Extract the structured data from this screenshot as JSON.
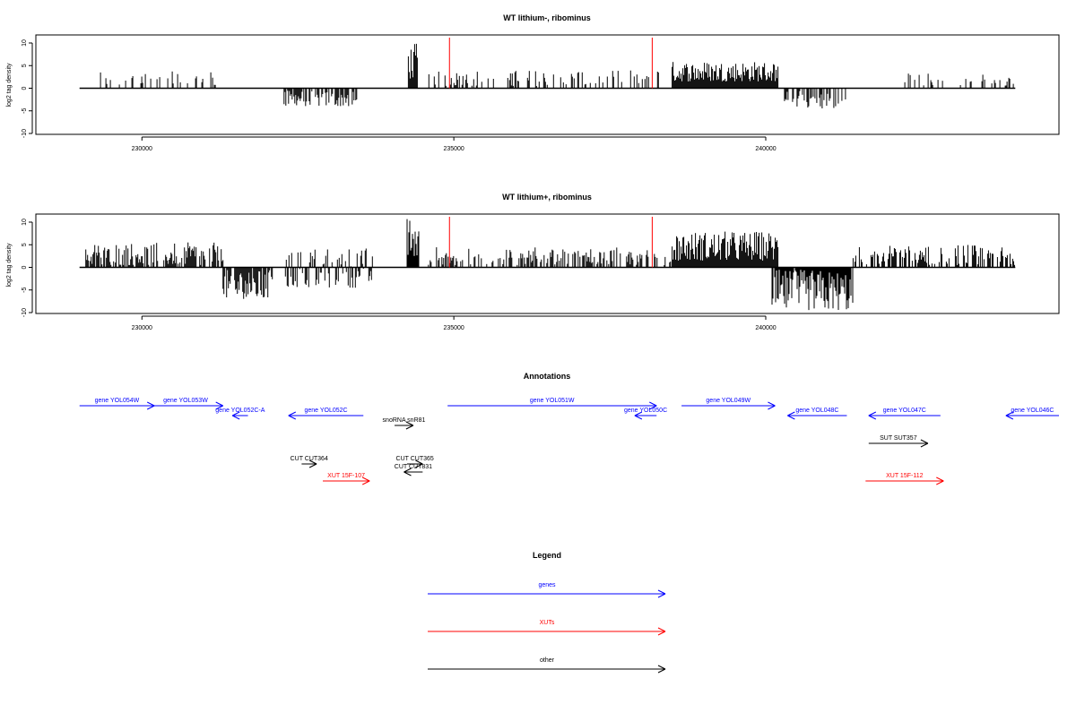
{
  "chart_data": [
    {
      "type": "bar",
      "title": "WT lithium-, ribominus",
      "ylabel": "log2 tag density",
      "xlim": [
        228300,
        244700
      ],
      "ylim": [
        -10,
        10
      ],
      "xticks": [
        230000,
        235000,
        240000
      ],
      "xtick_labels": [
        "230000",
        "235000",
        "240000"
      ],
      "yticks": [
        -10,
        -5,
        0,
        5,
        10
      ],
      "ytick_labels": [
        "-10",
        "-5",
        "0",
        "5",
        "10"
      ],
      "baseline": [
        229000,
        244000
      ],
      "markers": [
        234930,
        238180
      ],
      "marker_color": "#ff0000",
      "regions": [
        {
          "from": 229250,
          "to": 231200,
          "min": 0.5,
          "max": 4,
          "density": 0.25
        },
        {
          "from": 232250,
          "to": 233450,
          "min": -4,
          "max": -0.5,
          "density": 0.7
        },
        {
          "from": 234270,
          "to": 234420,
          "min": 2,
          "max": 10,
          "density": 1.0
        },
        {
          "from": 234600,
          "to": 238300,
          "min": 0.5,
          "max": 4,
          "density": 0.3
        },
        {
          "from": 238500,
          "to": 240200,
          "min": 1.5,
          "max": 6,
          "density": 1.0
        },
        {
          "from": 240200,
          "to": 241300,
          "min": -4.5,
          "max": -0.5,
          "density": 0.55
        },
        {
          "from": 242200,
          "to": 244000,
          "min": 0.5,
          "max": 3.5,
          "density": 0.2
        }
      ]
    },
    {
      "type": "bar",
      "title": "WT lithium+, ribominus",
      "ylabel": "log2 tag density",
      "xlim": [
        228300,
        244700
      ],
      "ylim": [
        -10,
        10
      ],
      "xticks": [
        230000,
        235000,
        240000
      ],
      "xtick_labels": [
        "230000",
        "235000",
        "240000"
      ],
      "yticks": [
        -10,
        -5,
        0,
        5,
        10
      ],
      "ytick_labels": [
        "-10",
        "-5",
        "0",
        "5",
        "10"
      ],
      "baseline": [
        229000,
        244000
      ],
      "markers": [
        234930,
        238180
      ],
      "marker_color": "#ff0000",
      "regions": [
        {
          "from": 229100,
          "to": 231300,
          "min": 0.5,
          "max": 5.5,
          "density": 0.7
        },
        {
          "from": 231300,
          "to": 232100,
          "min": -7,
          "max": -0.5,
          "density": 0.8
        },
        {
          "from": 232300,
          "to": 233700,
          "min": -4.5,
          "max": 4.5,
          "density": 0.75
        },
        {
          "from": 234250,
          "to": 234450,
          "min": 2,
          "max": 11,
          "density": 1.0
        },
        {
          "from": 234550,
          "to": 238500,
          "min": 0.5,
          "max": 4.5,
          "density": 0.5
        },
        {
          "from": 238500,
          "to": 240200,
          "min": 1.5,
          "max": 8,
          "density": 1.0
        },
        {
          "from": 240100,
          "to": 241400,
          "min": -9.5,
          "max": -0.5,
          "density": 0.95
        },
        {
          "from": 241400,
          "to": 244000,
          "min": 0.5,
          "max": 5,
          "density": 0.6
        }
      ]
    },
    {
      "type": "annotation-track",
      "title": "Annotations",
      "xlim": [
        228300,
        244700
      ],
      "features": [
        {
          "label": "gene YOL054W",
          "from": 229000,
          "to": 230200,
          "dir": "+",
          "row": 0,
          "class": "gene"
        },
        {
          "label": "gene YOL053W",
          "from": 230100,
          "to": 231300,
          "dir": "+",
          "row": 0,
          "class": "gene"
        },
        {
          "label": "gene YOL052C-A",
          "from": 231450,
          "to": 231700,
          "dir": "-",
          "row": 1,
          "class": "gene"
        },
        {
          "label": "gene YOL052C",
          "from": 232350,
          "to": 233550,
          "dir": "-",
          "row": 1,
          "class": "gene"
        },
        {
          "label": "gene YOL051W",
          "from": 234900,
          "to": 238250,
          "dir": "+",
          "row": 0,
          "class": "gene"
        },
        {
          "label": "gene YOL050C",
          "from": 237900,
          "to": 238250,
          "dir": "-",
          "row": 1,
          "class": "gene"
        },
        {
          "label": "gene YOL049W",
          "from": 238650,
          "to": 240150,
          "dir": "+",
          "row": 0,
          "class": "gene"
        },
        {
          "label": "gene YOL048C",
          "from": 240350,
          "to": 241300,
          "dir": "-",
          "row": 1,
          "class": "gene"
        },
        {
          "label": "gene YOL047C",
          "from": 241650,
          "to": 242800,
          "dir": "-",
          "row": 1,
          "class": "gene"
        },
        {
          "label": "gene YOL046C",
          "from": 243850,
          "to": 244700,
          "dir": "-",
          "row": 1,
          "class": "gene"
        },
        {
          "label": "snoRNA snR81",
          "from": 234050,
          "to": 234350,
          "dir": "+",
          "row": 2,
          "class": "other"
        },
        {
          "label": "SUT SUT357",
          "from": 241650,
          "to": 242600,
          "dir": "+",
          "row": 3,
          "class": "other"
        },
        {
          "label": "CUT CUT364",
          "from": 232560,
          "to": 232800,
          "dir": "+",
          "row": 4,
          "class": "other"
        },
        {
          "label": "CUT CUT365",
          "from": 234250,
          "to": 234500,
          "dir": "+",
          "row": 4,
          "class": "other"
        },
        {
          "label": "CUT CUT831",
          "from": 234200,
          "to": 234500,
          "dir": "-",
          "row": 5,
          "class": "other"
        },
        {
          "label": "XUT 15F-107",
          "from": 232900,
          "to": 233650,
          "dir": "+",
          "row": 6,
          "class": "xut"
        },
        {
          "label": "XUT 15F-112",
          "from": 241600,
          "to": 242850,
          "dir": "+",
          "row": 6,
          "class": "xut"
        }
      ]
    },
    {
      "type": "legend",
      "title": "Legend",
      "entries": [
        {
          "label": "genes",
          "color": "#0000ff"
        },
        {
          "label": "XUTs",
          "color": "#ff0000"
        },
        {
          "label": "other",
          "color": "#000000"
        }
      ]
    }
  ],
  "colors": {
    "gene": "#0000ff",
    "xut": "#ff0000",
    "other": "#000000",
    "marker": "#ff0000"
  }
}
